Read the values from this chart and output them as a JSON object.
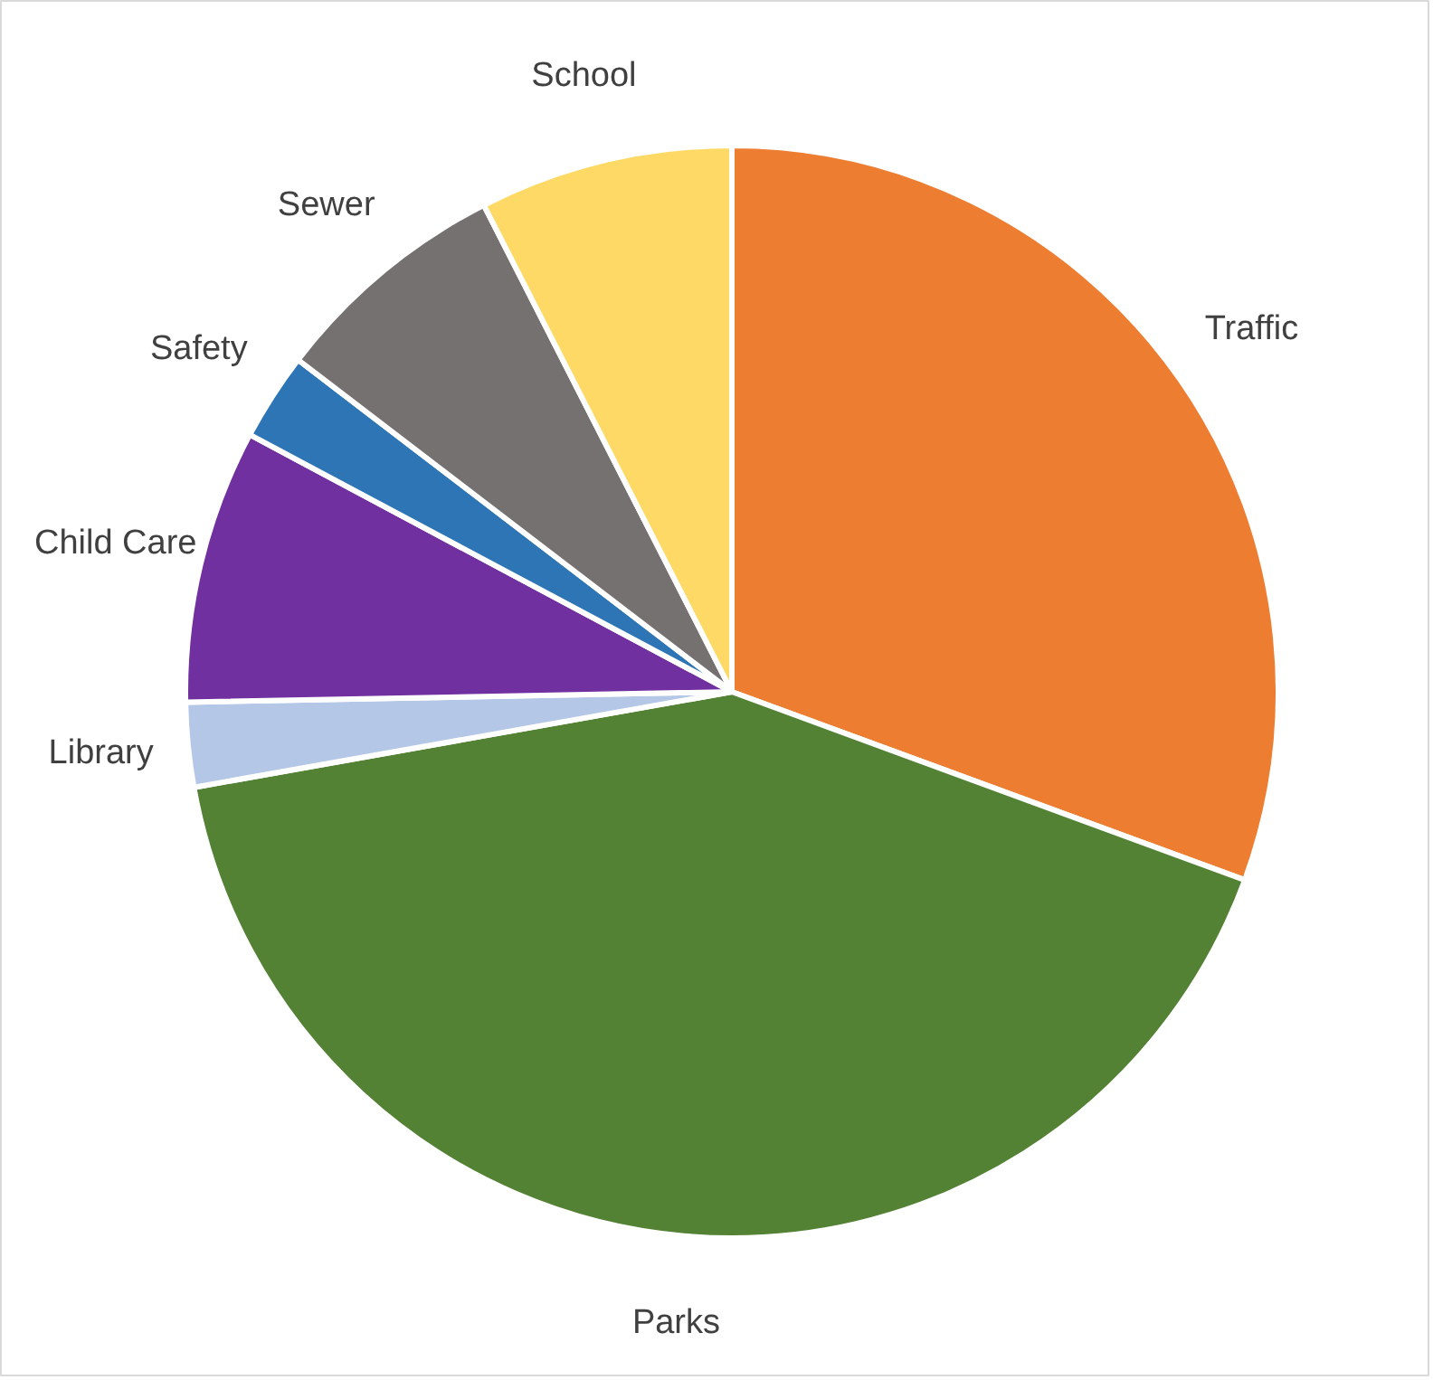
{
  "chart_data": {
    "type": "pie",
    "categories": [
      "Traffic",
      "Parks",
      "Library",
      "Child Care",
      "Safety",
      "Sewer",
      "School"
    ],
    "values": [
      30.6,
      41.6,
      2.5,
      8.1,
      2.6,
      7.1,
      7.5
    ],
    "colors": [
      "#ed7d31",
      "#548235",
      "#b4c7e7",
      "#7030a0",
      "#2e75b6",
      "#767171",
      "#ffd966"
    ]
  }
}
